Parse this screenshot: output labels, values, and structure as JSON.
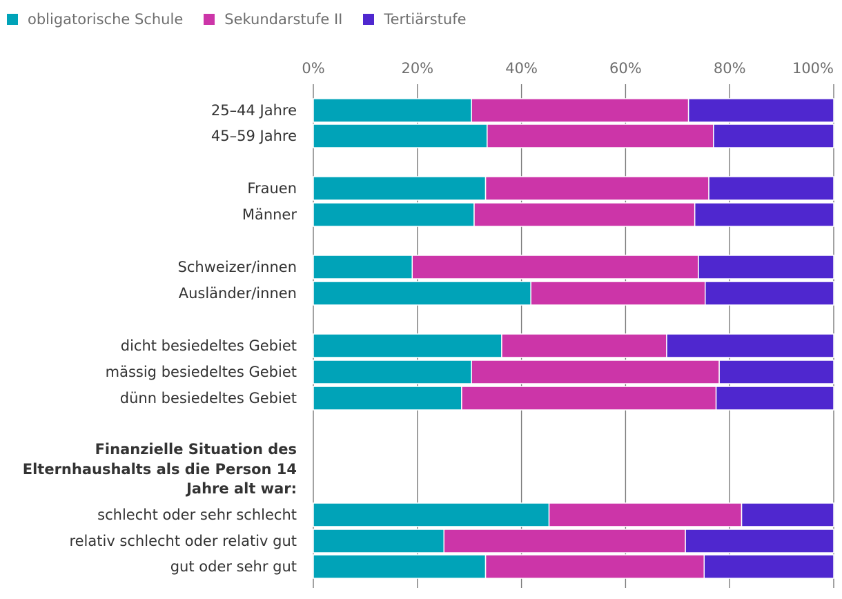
{
  "legend": [
    {
      "label": "obligatorische Schule",
      "color": "#00a3b8"
    },
    {
      "label": "Sekundarstufe II",
      "color": "#cc35a8"
    },
    {
      "label": "Tertiärstufe",
      "color": "#4f27cf"
    }
  ],
  "chart_data": {
    "type": "bar",
    "orientation": "horizontal",
    "stacked": true,
    "xlim": [
      0,
      100
    ],
    "x_ticks": [
      "0%",
      "20%",
      "40%",
      "60%",
      "80%",
      "100%"
    ],
    "grid": true,
    "legend_position": "top-left",
    "group_heading": [
      "Finanzielle Situation des",
      "Elternhaushalts als die Person 14",
      "Jahre alt war:"
    ],
    "categories": [
      "25–44 Jahre",
      "45–59 Jahre",
      "Frauen",
      "Männer",
      "Schweizer/innen",
      "Ausländer/innen",
      "dicht besiedeltes Gebiet",
      "mässig besiedeltes Gebiet",
      "dünn besiedeltes Gebiet",
      "schlecht oder sehr schlecht",
      "relativ schlecht oder relativ gut",
      "gut oder sehr gut"
    ],
    "series": [
      {
        "name": "obligatorische Schule",
        "values": [
          30.4,
          33.4,
          33.1,
          30.9,
          19.0,
          41.8,
          36.2,
          30.4,
          28.5,
          45.3,
          25.1,
          33.1
        ]
      },
      {
        "name": "Sekundarstufe II",
        "values": [
          41.7,
          43.5,
          42.9,
          42.4,
          55.0,
          33.5,
          31.7,
          47.6,
          48.9,
          37.0,
          46.4,
          42.0
        ]
      },
      {
        "name": "Tertiärstufe",
        "values": [
          27.9,
          23.1,
          24.0,
          26.7,
          26.0,
          24.7,
          32.1,
          22.0,
          22.6,
          17.7,
          28.5,
          24.9
        ]
      }
    ]
  }
}
